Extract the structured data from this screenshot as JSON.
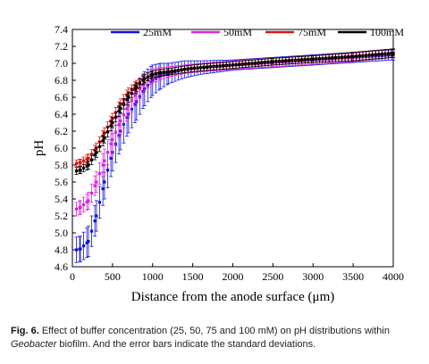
{
  "chart_data": {
    "type": "line",
    "title": "",
    "xlabel": "Distance from the anode surface (μm)",
    "ylabel": "pH",
    "xlim": [
      0,
      4000
    ],
    "ylim": [
      4.6,
      7.4
    ],
    "x_ticks": [
      0,
      500,
      1000,
      1500,
      2000,
      2500,
      3000,
      3500,
      4000
    ],
    "y_ticks": [
      4.6,
      4.8,
      5.0,
      5.2,
      5.4,
      5.6,
      5.8,
      6.0,
      6.2,
      6.4,
      6.6,
      6.8,
      7.0,
      7.2,
      7.4
    ],
    "grid": false,
    "legend_position": "top",
    "error_bars": true,
    "series": [
      {
        "name": "25mM",
        "color": "#1010e0",
        "x": [
          50,
          100,
          200,
          300,
          400,
          500,
          600,
          700,
          800,
          900,
          1000,
          1100,
          1200,
          1400,
          1600,
          2000,
          2500,
          3000,
          3500,
          4000
        ],
        "y": [
          4.8,
          4.81,
          4.9,
          5.2,
          5.6,
          5.95,
          6.2,
          6.4,
          6.55,
          6.7,
          6.8,
          6.85,
          6.88,
          6.93,
          6.95,
          6.98,
          7.01,
          7.04,
          7.07,
          7.1
        ],
        "err": [
          0.15,
          0.15,
          0.18,
          0.18,
          0.2,
          0.22,
          0.22,
          0.22,
          0.22,
          0.2,
          0.18,
          0.15,
          0.12,
          0.1,
          0.08,
          0.06,
          0.06,
          0.06,
          0.06,
          0.06
        ]
      },
      {
        "name": "50mM",
        "color": "#e020e0",
        "x": [
          50,
          100,
          200,
          300,
          400,
          500,
          600,
          700,
          800,
          900,
          1000,
          1100,
          1200,
          1400,
          1600,
          2000,
          2500,
          3000,
          3500,
          4000
        ],
        "y": [
          5.28,
          5.3,
          5.38,
          5.6,
          5.85,
          6.1,
          6.32,
          6.5,
          6.65,
          6.77,
          6.85,
          6.88,
          6.9,
          6.93,
          6.95,
          6.98,
          7.01,
          7.04,
          7.07,
          7.12
        ],
        "err": [
          0.08,
          0.08,
          0.1,
          0.12,
          0.14,
          0.16,
          0.16,
          0.14,
          0.12,
          0.1,
          0.08,
          0.07,
          0.06,
          0.05,
          0.05,
          0.05,
          0.05,
          0.05,
          0.05,
          0.05
        ]
      },
      {
        "name": "75mM",
        "color": "#e01010",
        "x": [
          50,
          100,
          200,
          300,
          400,
          500,
          600,
          700,
          800,
          900,
          1000,
          1100,
          1200,
          1400,
          1600,
          2000,
          2500,
          3000,
          3500,
          4000
        ],
        "y": [
          5.82,
          5.83,
          5.88,
          6.0,
          6.18,
          6.35,
          6.52,
          6.65,
          6.75,
          6.82,
          6.87,
          6.89,
          6.9,
          6.93,
          6.95,
          6.98,
          7.02,
          7.05,
          7.08,
          7.12
        ],
        "err": [
          0.04,
          0.04,
          0.05,
          0.06,
          0.06,
          0.06,
          0.06,
          0.06,
          0.05,
          0.05,
          0.04,
          0.04,
          0.04,
          0.04,
          0.04,
          0.04,
          0.04,
          0.04,
          0.05,
          0.05
        ]
      },
      {
        "name": "100mM",
        "color": "#000000",
        "x": [
          50,
          100,
          200,
          300,
          400,
          500,
          600,
          700,
          800,
          900,
          1000,
          1100,
          1200,
          1400,
          1600,
          2000,
          2500,
          3000,
          3500,
          4000
        ],
        "y": [
          5.73,
          5.74,
          5.8,
          5.95,
          6.12,
          6.3,
          6.47,
          6.6,
          6.72,
          6.82,
          6.87,
          6.89,
          6.9,
          6.93,
          6.95,
          6.98,
          7.02,
          7.05,
          7.08,
          7.12
        ],
        "err": [
          0.04,
          0.04,
          0.05,
          0.06,
          0.06,
          0.06,
          0.06,
          0.06,
          0.05,
          0.05,
          0.04,
          0.04,
          0.04,
          0.04,
          0.04,
          0.04,
          0.04,
          0.04,
          0.05,
          0.05
        ]
      }
    ]
  },
  "caption": {
    "label": "Fig. 6.",
    "text_1": "Effect of buffer concentration (25, 50, 75 and 100 mM) on pH distributions within ",
    "italic": "Geobacter",
    "text_2": " biofilm. And the error bars indicate the standard deviations."
  }
}
